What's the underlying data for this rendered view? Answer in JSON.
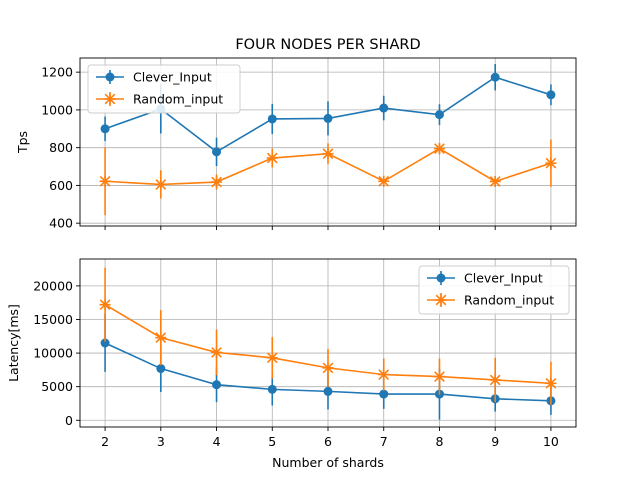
{
  "figure": {
    "title": "FOUR NODES PER SHARD"
  },
  "chart_data": [
    {
      "type": "line",
      "title": "FOUR NODES PER SHARD",
      "xlabel": "",
      "ylabel": "Tps",
      "x": [
        2,
        3,
        4,
        5,
        6,
        7,
        8,
        9,
        10
      ],
      "xlim": [
        1.55,
        10.45
      ],
      "ylim": [
        385,
        1275
      ],
      "yticks": [
        400,
        600,
        800,
        1000,
        1200
      ],
      "grid": true,
      "legend": "upper left",
      "series": [
        {
          "name": "Clever_Input",
          "color": "#1f77b4",
          "marker": "circle",
          "values": [
            900,
            1005,
            778,
            952,
            955,
            1010,
            975,
            1173,
            1080
          ],
          "errors": [
            65,
            130,
            75,
            80,
            90,
            65,
            55,
            70,
            55
          ]
        },
        {
          "name": "Random_input",
          "color": "#ff7f0e",
          "marker": "x",
          "values": [
            622,
            605,
            618,
            745,
            768,
            622,
            795,
            621,
            718
          ],
          "errors": [
            180,
            75,
            40,
            50,
            55,
            25,
            30,
            25,
            125
          ]
        }
      ]
    },
    {
      "type": "line",
      "title": "",
      "xlabel": "Number of shards",
      "ylabel": "Latency[ms]",
      "x": [
        2,
        3,
        4,
        5,
        6,
        7,
        8,
        9,
        10
      ],
      "xticks": [
        "2",
        "3",
        "4",
        "5",
        "6",
        "7",
        "8",
        "9",
        "10"
      ],
      "xlim": [
        1.55,
        10.45
      ],
      "ylim": [
        -1000,
        24000
      ],
      "yticks": [
        0,
        5000,
        10000,
        15000,
        20000
      ],
      "grid": true,
      "legend": "upper right",
      "series": [
        {
          "name": "Clever_Input",
          "color": "#1f77b4",
          "marker": "circle",
          "values": [
            11500,
            7700,
            5300,
            4600,
            4300,
            3900,
            3900,
            3200,
            2900
          ],
          "errors": [
            4300,
            3500,
            2600,
            2400,
            2700,
            2200,
            3800,
            1900,
            2100
          ]
        },
        {
          "name": "Random_input",
          "color": "#ff7f0e",
          "marker": "x",
          "values": [
            17200,
            12300,
            10100,
            9300,
            7800,
            6800,
            6500,
            6000,
            5500
          ],
          "errors": [
            5500,
            4100,
            3400,
            3100,
            2800,
            2400,
            2700,
            3300,
            3200
          ]
        }
      ]
    }
  ]
}
